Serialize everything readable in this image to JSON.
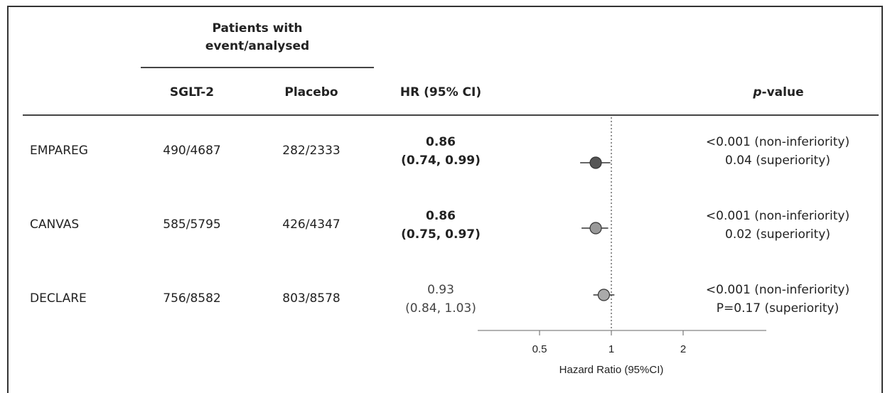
{
  "header": {
    "group_label_line1": "Patients with",
    "group_label_line2": "event/analysed",
    "col_sglt2": "SGLT-2",
    "col_placebo": "Placebo",
    "col_hr": "HR (95% CI)",
    "col_p_italic": "p",
    "col_p_rest": "-value"
  },
  "rows": [
    {
      "trial": "EMPAREG",
      "sglt2": "490/4687",
      "placebo": "282/2333",
      "hr": "0.86",
      "ci": "(0.74, 0.99)",
      "bold": true,
      "p1": "<0.001 (non-inferiority)",
      "p2": "0.04 (superiority)"
    },
    {
      "trial": "CANVAS",
      "sglt2": "585/5795",
      "placebo": "426/4347",
      "hr": "0.86",
      "ci": "(0.75, 0.97)",
      "bold": true,
      "p1": "<0.001 (non-inferiority)",
      "p2": "0.02 (superiority)"
    },
    {
      "trial": "DECLARE",
      "sglt2": "756/8582",
      "placebo": "803/8578",
      "hr": "0.93",
      "ci": "(0.84, 1.03)",
      "bold": false,
      "p1": "<0.001 (non-inferiority)",
      "p2": "P=0.17 (superiority)"
    }
  ],
  "chart_data": {
    "type": "scatter",
    "xlabel": "Hazard Ratio (95%CI)",
    "x_scale": "log",
    "xlim": [
      0.3,
      3
    ],
    "ticks": [
      0.5,
      1,
      2
    ],
    "tick_labels": [
      "0.5",
      "1",
      "2"
    ],
    "reference_line": 1,
    "series": [
      {
        "points": [
          {
            "trial": "EMPAREG",
            "hr": 0.86,
            "lo": 0.74,
            "hi": 0.99,
            "color": "#555555"
          },
          {
            "trial": "CANVAS",
            "hr": 0.86,
            "lo": 0.75,
            "hi": 0.97,
            "color": "#999999"
          },
          {
            "trial": "DECLARE",
            "hr": 0.93,
            "lo": 0.84,
            "hi": 1.03,
            "color": "#aaaaaa"
          }
        ]
      }
    ]
  }
}
